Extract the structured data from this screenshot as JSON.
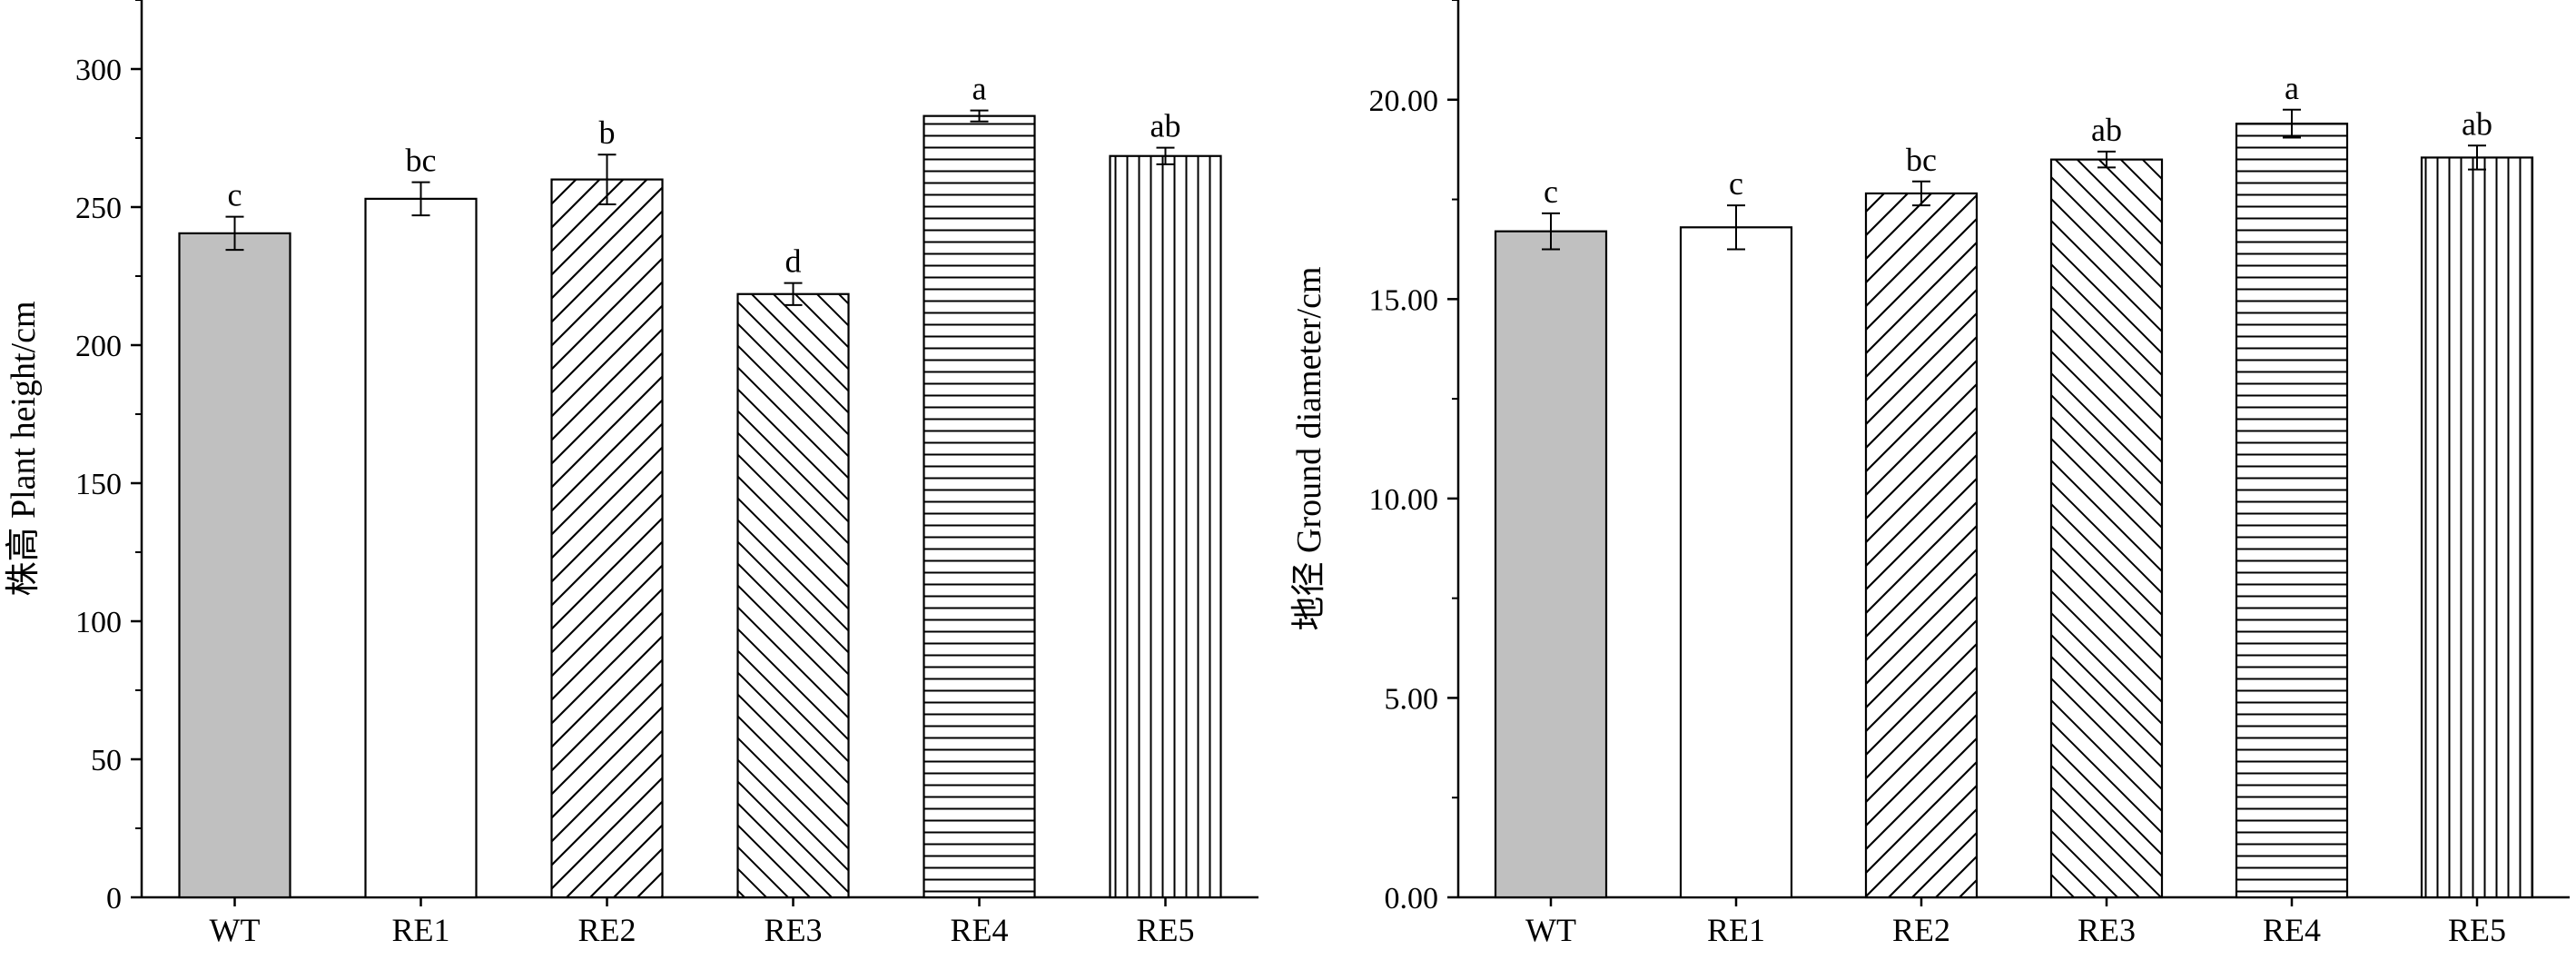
{
  "chart_data": [
    {
      "type": "bar",
      "categories": [
        "WT",
        "RE1",
        "RE2",
        "RE3",
        "RE4",
        "RE5"
      ],
      "values": [
        240.5,
        253.0,
        260.0,
        218.5,
        283.0,
        268.5
      ],
      "errors": [
        6,
        6,
        9,
        4,
        2,
        3
      ],
      "significance": [
        "c",
        "bc",
        "b",
        "d",
        "a",
        "ab"
      ],
      "patterns": [
        "gray",
        "white",
        "diag-right",
        "diag-left",
        "horizontal",
        "vertical"
      ],
      "fill_color": "#c0c0c0",
      "xlabel": "",
      "ylabel": "株高  Plant height/cm",
      "ylim": [
        0,
        325
      ],
      "yticks": [
        0,
        50,
        100,
        150,
        200,
        250,
        300
      ],
      "ytick_labels": [
        "0",
        "50",
        "100",
        "150",
        "200",
        "250",
        "300"
      ],
      "grid": false
    },
    {
      "type": "bar",
      "categories": [
        "WT",
        "RE1",
        "RE2",
        "RE3",
        "RE4",
        "RE5"
      ],
      "values": [
        16.7,
        16.8,
        17.65,
        18.5,
        19.4,
        18.55
      ],
      "errors": [
        0.45,
        0.55,
        0.3,
        0.2,
        0.35,
        0.3
      ],
      "significance": [
        "c",
        "c",
        "bc",
        "ab",
        "a",
        "ab"
      ],
      "patterns": [
        "gray",
        "white",
        "diag-right",
        "diag-left",
        "horizontal",
        "vertical"
      ],
      "fill_color": "#c0c0c0",
      "xlabel": "",
      "ylabel": "地径  Ground diameter/cm",
      "ylim": [
        0,
        22.5
      ],
      "yticks": [
        0,
        5,
        10,
        15,
        20
      ],
      "ytick_labels": [
        "0.00",
        "5.00",
        "10.00",
        "15.00",
        "20.00"
      ],
      "grid": false
    }
  ]
}
